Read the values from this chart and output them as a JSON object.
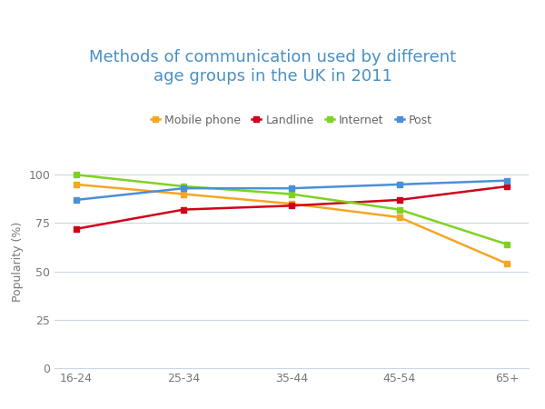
{
  "title": "Methods of communication used by different\nage groups in the UK in 2011",
  "title_color": "#4a90c4",
  "ylabel": "Popularity (%)",
  "x_labels": [
    "16-24",
    "25-34",
    "35-44",
    "45-54",
    "65+"
  ],
  "ylim": [
    0,
    110
  ],
  "yticks": [
    0,
    25,
    50,
    75,
    100
  ],
  "series": [
    {
      "label": "Mobile phone",
      "color": "#f5a623",
      "values": [
        95,
        90,
        85,
        78,
        54
      ]
    },
    {
      "label": "Landline",
      "color": "#d0021b",
      "values": [
        72,
        82,
        84,
        87,
        94
      ]
    },
    {
      "label": "Internet",
      "color": "#7ed321",
      "values": [
        100,
        94,
        90,
        82,
        64
      ]
    },
    {
      "label": "Post",
      "color": "#4a90d9",
      "values": [
        87,
        93,
        93,
        95,
        97
      ]
    }
  ],
  "background_color": "#ffffff",
  "grid_color": "#ccd8e0",
  "title_fontsize": 13,
  "axis_label_fontsize": 9,
  "tick_fontsize": 9,
  "legend_fontsize": 9,
  "line_width": 1.8,
  "marker_size": 5
}
